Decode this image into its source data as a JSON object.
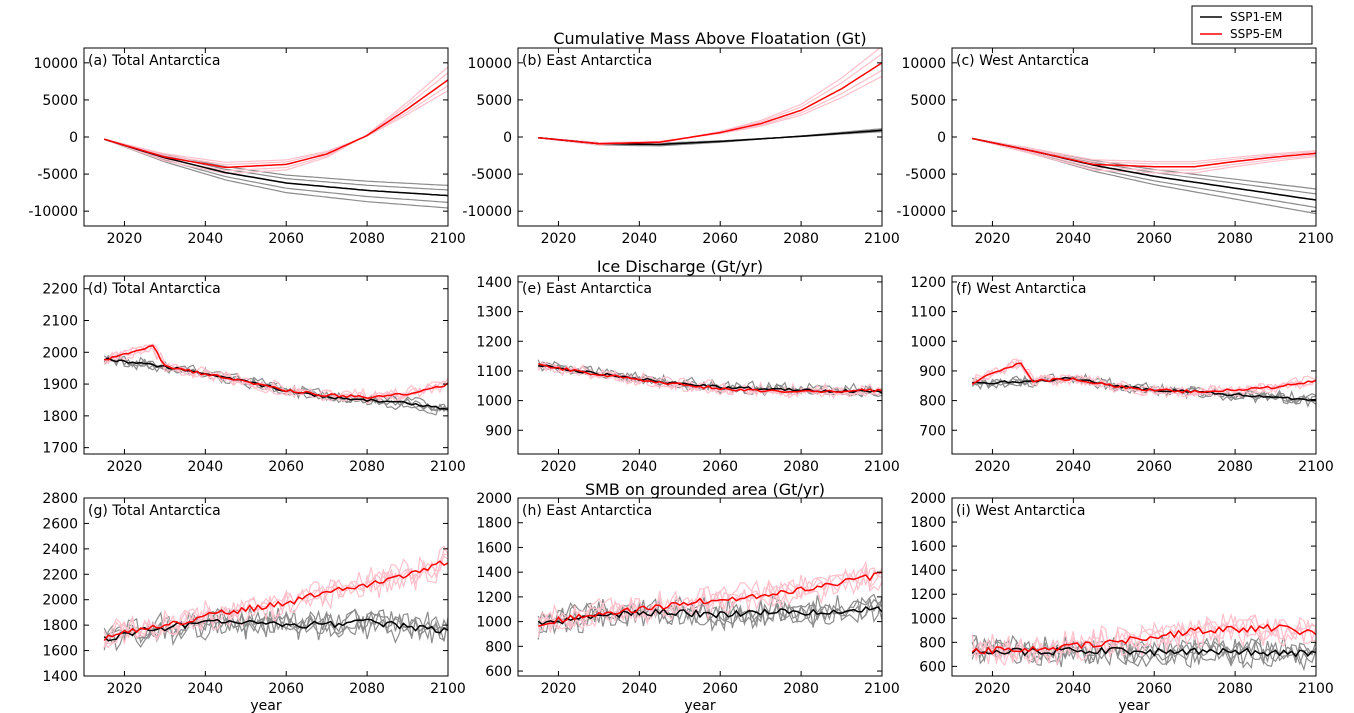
{
  "legend": {
    "placement": "top-right",
    "entries": [
      {
        "label": "SSP1-EM",
        "color": "#000000"
      },
      {
        "label": "SSP5-EM",
        "color": "#ff0000"
      }
    ]
  },
  "row_titles": [
    "Cumulative Mass Above Floatation (Gt)",
    "Ice Discharge (Gt/yr)",
    "SMB on grounded area (Gt/yr)"
  ],
  "colors": {
    "ssp1_mean": "#000000",
    "ssp1_members": "#8c8c8c",
    "ssp5_mean": "#ff0000",
    "ssp5_members": "#ffc0cb"
  },
  "chart_data": [
    {
      "id": "a",
      "type": "line",
      "row": 0,
      "col": 0,
      "panel_label": "(a) Total Antarctica",
      "xlabel": "",
      "xlim": [
        2010,
        2100
      ],
      "ylim": [
        -12000,
        12000
      ],
      "xticks": [
        2020,
        2040,
        2060,
        2080,
        2100
      ],
      "yticks": [
        -10000,
        -5000,
        0,
        5000,
        10000
      ],
      "series": [
        {
          "name": "SSP1-EM",
          "x": [
            2015,
            2030,
            2045,
            2060,
            2080,
            2100
          ],
          "values": [
            -300,
            -2800,
            -4800,
            -6200,
            -7200,
            -7900
          ]
        },
        {
          "name": "SSP5-EM",
          "x": [
            2015,
            2030,
            2045,
            2060,
            2070,
            2080,
            2090,
            2100
          ],
          "values": [
            -300,
            -2700,
            -4100,
            -3700,
            -2300,
            200,
            3800,
            7700
          ]
        }
      ]
    },
    {
      "id": "b",
      "type": "line",
      "row": 0,
      "col": 1,
      "panel_label": "(b) East Antarctica",
      "xlabel": "",
      "xlim": [
        2010,
        2100
      ],
      "ylim": [
        -12000,
        12000
      ],
      "xticks": [
        2020,
        2040,
        2060,
        2080,
        2100
      ],
      "yticks": [
        -10000,
        -5000,
        0,
        5000,
        10000
      ],
      "series": [
        {
          "name": "SSP1-EM",
          "x": [
            2015,
            2030,
            2045,
            2060,
            2080,
            2100
          ],
          "values": [
            -100,
            -900,
            -1000,
            -600,
            100,
            900
          ]
        },
        {
          "name": "SSP5-EM",
          "x": [
            2015,
            2030,
            2045,
            2060,
            2070,
            2080,
            2090,
            2100
          ],
          "values": [
            -100,
            -900,
            -700,
            600,
            1800,
            3600,
            6500,
            10000
          ]
        }
      ]
    },
    {
      "id": "c",
      "type": "line",
      "row": 0,
      "col": 2,
      "panel_label": "(c) West Antarctica",
      "xlabel": "",
      "xlim": [
        2010,
        2100
      ],
      "ylim": [
        -12000,
        12000
      ],
      "xticks": [
        2020,
        2040,
        2060,
        2080,
        2100
      ],
      "yticks": [
        -10000,
        -5000,
        0,
        5000,
        10000
      ],
      "series": [
        {
          "name": "SSP1-EM",
          "x": [
            2015,
            2030,
            2045,
            2060,
            2080,
            2100
          ],
          "values": [
            -200,
            -1900,
            -3800,
            -5300,
            -6900,
            -8500
          ]
        },
        {
          "name": "SSP5-EM",
          "x": [
            2015,
            2030,
            2045,
            2060,
            2070,
            2080,
            2090,
            2100
          ],
          "values": [
            -200,
            -1900,
            -3700,
            -4000,
            -4000,
            -3300,
            -2700,
            -2200
          ]
        }
      ]
    },
    {
      "id": "d",
      "type": "line",
      "row": 1,
      "col": 0,
      "panel_label": "(d) Total Antarctica",
      "xlabel": "",
      "xlim": [
        2010,
        2100
      ],
      "ylim": [
        1680,
        2240
      ],
      "xticks": [
        2020,
        2040,
        2060,
        2080,
        2100
      ],
      "yticks": [
        1700,
        1800,
        1900,
        2000,
        2100,
        2200
      ],
      "series": [
        {
          "name": "SSP1-EM",
          "x": [
            2015,
            2030,
            2045,
            2060,
            2070,
            2080,
            2090,
            2100
          ],
          "values": [
            1980,
            1955,
            1920,
            1880,
            1860,
            1850,
            1840,
            1820
          ]
        },
        {
          "name": "SSP5-EM",
          "x": [
            2015,
            2027,
            2030,
            2045,
            2060,
            2070,
            2080,
            2090,
            2100
          ],
          "values": [
            1975,
            2020,
            1955,
            1920,
            1880,
            1865,
            1860,
            1870,
            1900
          ]
        }
      ]
    },
    {
      "id": "e",
      "type": "line",
      "row": 1,
      "col": 1,
      "panel_label": "(e) East Antarctica",
      "xlabel": "",
      "xlim": [
        2010,
        2100
      ],
      "ylim": [
        820,
        1420
      ],
      "xticks": [
        2020,
        2040,
        2060,
        2080,
        2100
      ],
      "yticks": [
        900,
        1000,
        1100,
        1200,
        1300,
        1400
      ],
      "series": [
        {
          "name": "SSP1-EM",
          "x": [
            2015,
            2030,
            2045,
            2060,
            2080,
            2100
          ],
          "values": [
            1120,
            1090,
            1065,
            1045,
            1035,
            1030
          ]
        },
        {
          "name": "SSP5-EM",
          "x": [
            2015,
            2030,
            2045,
            2060,
            2080,
            2100
          ],
          "values": [
            1120,
            1088,
            1062,
            1040,
            1030,
            1035
          ]
        }
      ]
    },
    {
      "id": "f",
      "type": "line",
      "row": 1,
      "col": 2,
      "panel_label": "(f) West Antarctica",
      "xlabel": "",
      "xlim": [
        2010,
        2100
      ],
      "ylim": [
        620,
        1220
      ],
      "xticks": [
        2020,
        2040,
        2060,
        2080,
        2100
      ],
      "yticks": [
        700,
        800,
        900,
        1000,
        1100,
        1200
      ],
      "series": [
        {
          "name": "SSP1-EM",
          "x": [
            2015,
            2030,
            2040,
            2050,
            2060,
            2070,
            2080,
            2090,
            2100
          ],
          "values": [
            860,
            865,
            875,
            850,
            835,
            830,
            820,
            810,
            800
          ]
        },
        {
          "name": "SSP5-EM",
          "x": [
            2015,
            2027,
            2030,
            2040,
            2050,
            2060,
            2070,
            2080,
            2090,
            2100
          ],
          "values": [
            860,
            930,
            865,
            875,
            850,
            835,
            830,
            835,
            845,
            865
          ]
        }
      ]
    },
    {
      "id": "g",
      "type": "line",
      "row": 2,
      "col": 0,
      "panel_label": "(g) Total Antarctica",
      "xlabel": "year",
      "xlim": [
        2010,
        2100
      ],
      "ylim": [
        1400,
        2800
      ],
      "xticks": [
        2020,
        2040,
        2060,
        2080,
        2100
      ],
      "yticks": [
        1400,
        1600,
        1800,
        2000,
        2200,
        2400,
        2600,
        2800
      ],
      "series": [
        {
          "name": "SSP1-EM",
          "x": [
            2015,
            2030,
            2045,
            2060,
            2080,
            2100
          ],
          "values": [
            1700,
            1780,
            1830,
            1800,
            1820,
            1760
          ]
        },
        {
          "name": "SSP1-EM (member)",
          "x": [
            2015,
            2030,
            2045,
            2060,
            2080,
            2100
          ],
          "values": [
            1750,
            1820,
            1760,
            1820,
            1780,
            1700
          ]
        },
        {
          "name": "SSP5-EM",
          "x": [
            2015,
            2030,
            2045,
            2060,
            2070,
            2080,
            2090,
            2100
          ],
          "values": [
            1700,
            1800,
            1900,
            1980,
            2050,
            2120,
            2200,
            2300
          ]
        },
        {
          "name": "SSP5-EM (member)",
          "x": [
            2015,
            2030,
            2045,
            2060,
            2070,
            2080,
            2090,
            2100
          ],
          "values": [
            1650,
            1850,
            2000,
            2050,
            2150,
            2250,
            2400,
            2500
          ]
        }
      ]
    },
    {
      "id": "h",
      "type": "line",
      "row": 2,
      "col": 1,
      "panel_label": "(h) East Antarctica",
      "xlabel": "year",
      "xlim": [
        2010,
        2100
      ],
      "ylim": [
        560,
        2000
      ],
      "xticks": [
        2020,
        2040,
        2060,
        2080,
        2100
      ],
      "yticks": [
        600,
        800,
        1000,
        1200,
        1400,
        1600,
        1800,
        2000
      ],
      "series": [
        {
          "name": "SSP1-EM",
          "x": [
            2015,
            2030,
            2045,
            2060,
            2080,
            2100
          ],
          "values": [
            980,
            1050,
            1080,
            1060,
            1080,
            1100
          ]
        },
        {
          "name": "SSP5-EM",
          "x": [
            2015,
            2030,
            2045,
            2060,
            2070,
            2080,
            2090,
            2100
          ],
          "values": [
            980,
            1060,
            1120,
            1180,
            1200,
            1260,
            1320,
            1380
          ]
        }
      ]
    },
    {
      "id": "i",
      "type": "line",
      "row": 2,
      "col": 2,
      "panel_label": "(i) West Antarctica",
      "xlabel": "year",
      "xlim": [
        2010,
        2100
      ],
      "ylim": [
        520,
        2000
      ],
      "xticks": [
        2020,
        2040,
        2060,
        2080,
        2100
      ],
      "yticks": [
        600,
        800,
        1000,
        1200,
        1400,
        1600,
        1800,
        2000
      ],
      "series": [
        {
          "name": "SSP1-EM",
          "x": [
            2015,
            2030,
            2045,
            2060,
            2080,
            2100
          ],
          "values": [
            730,
            720,
            730,
            720,
            730,
            700
          ]
        },
        {
          "name": "SSP5-EM",
          "x": [
            2015,
            2030,
            2045,
            2060,
            2070,
            2080,
            2090,
            2100
          ],
          "values": [
            730,
            740,
            790,
            840,
            900,
            910,
            920,
            880
          ]
        }
      ]
    }
  ]
}
